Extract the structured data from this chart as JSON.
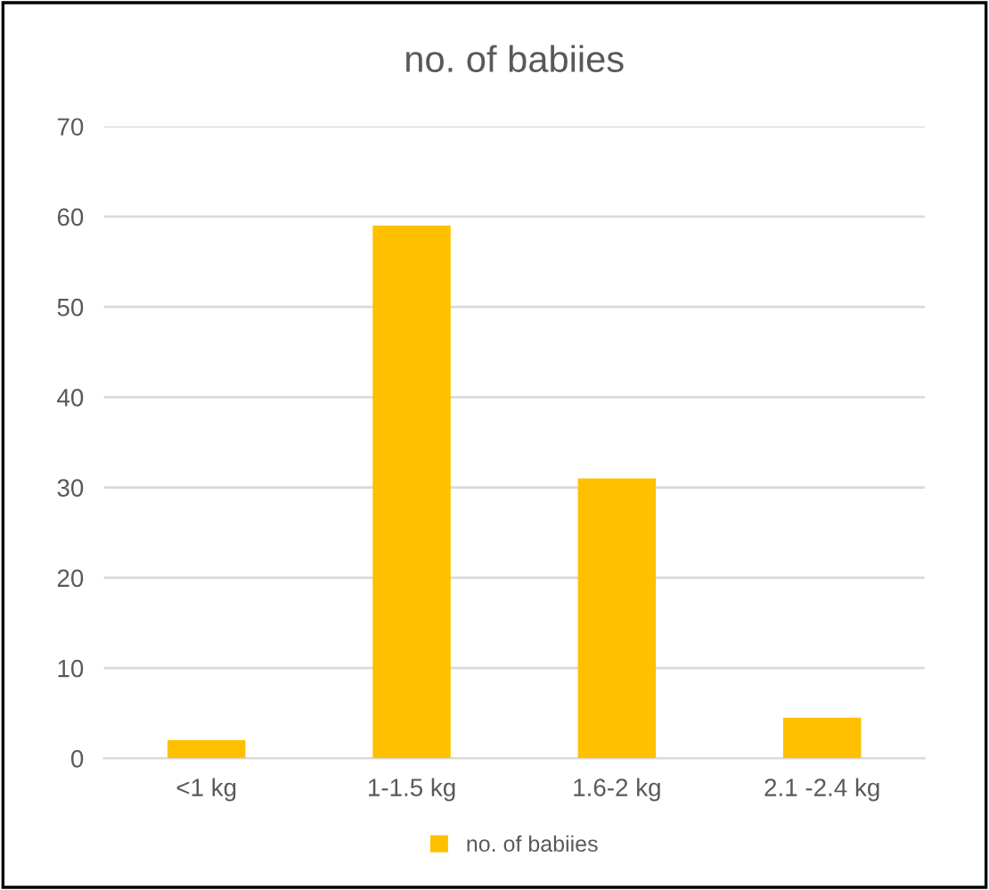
{
  "chart_data": {
    "type": "bar",
    "title": "no. of babiies",
    "categories": [
      "<1 kg",
      "1-1.5 kg",
      "1.6-2 kg",
      "2.1 -2.4 kg"
    ],
    "series": [
      {
        "name": "no. of babiies",
        "color": "#ffc000",
        "values": [
          2,
          59,
          31,
          4.5
        ]
      }
    ],
    "ylim": [
      0,
      70
    ],
    "yticks": [
      0,
      10,
      20,
      30,
      40,
      50,
      60,
      70
    ],
    "grid": "y",
    "legend": "bottom"
  }
}
